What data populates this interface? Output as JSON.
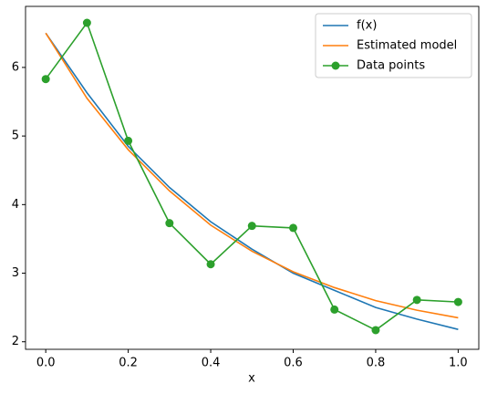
{
  "chart_data": {
    "type": "line",
    "x_label": "x",
    "x": [
      0.0,
      0.1,
      0.2,
      0.3,
      0.4,
      0.5,
      0.6,
      0.7,
      0.8,
      0.9,
      1.0
    ],
    "series": [
      {
        "name": "f(x)",
        "color": "#1f77b4",
        "values": [
          6.5,
          5.63,
          4.85,
          4.25,
          3.75,
          3.35,
          3.0,
          2.75,
          2.5,
          2.33,
          2.18
        ]
      },
      {
        "name": "Estimated model",
        "color": "#ff7f0e",
        "values": [
          6.5,
          5.55,
          4.8,
          4.2,
          3.7,
          3.32,
          3.02,
          2.79,
          2.6,
          2.46,
          2.35
        ]
      },
      {
        "name": "Data points",
        "color": "#2ca02c",
        "marker": "o",
        "values": [
          5.83,
          6.65,
          4.93,
          3.73,
          3.13,
          3.69,
          3.66,
          2.47,
          2.17,
          2.61,
          2.58
        ]
      }
    ],
    "xlim": [
      -0.049,
      1.05
    ],
    "ylim": [
      1.89,
      6.89
    ],
    "xticks": [
      {
        "value": 0,
        "label": "0.0"
      },
      0.2,
      0.4,
      0.6,
      0.8,
      {
        "value": 1,
        "label": "1.0"
      }
    ],
    "yticks": [
      2,
      3,
      4,
      5,
      6
    ],
    "grid": false,
    "legend": "upper-right"
  }
}
